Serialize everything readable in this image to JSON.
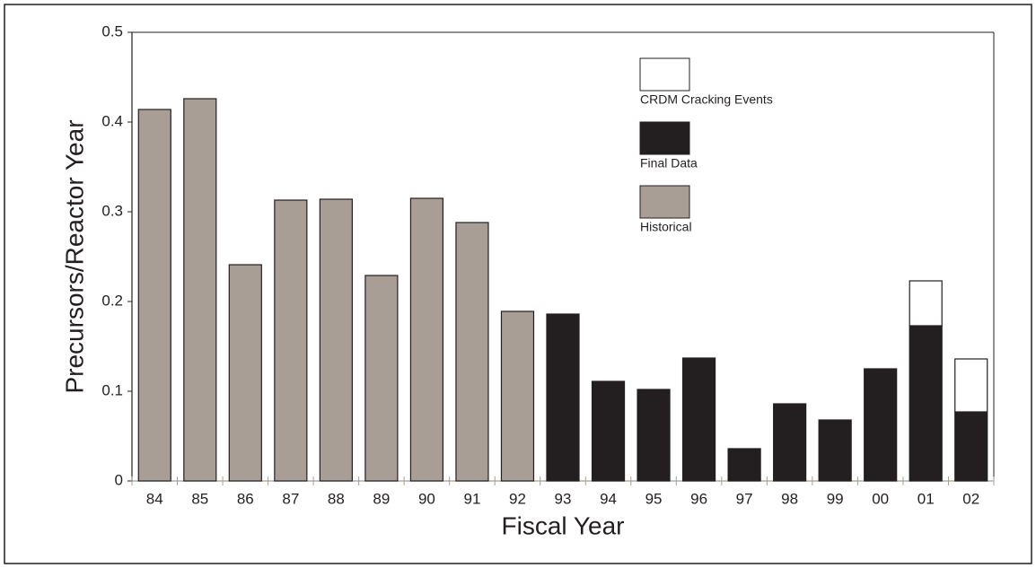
{
  "chart_data": {
    "type": "bar",
    "stacked": true,
    "x_label": "Fiscal Year",
    "y_label": "Precursors/Reactor Year",
    "categories": [
      "84",
      "85",
      "86",
      "87",
      "88",
      "89",
      "90",
      "91",
      "92",
      "93",
      "94",
      "95",
      "96",
      "97",
      "98",
      "99",
      "00",
      "01",
      "02"
    ],
    "series": [
      {
        "name": "Historical",
        "color": "#a89e95",
        "values": [
          0.414,
          0.426,
          0.241,
          0.313,
          0.314,
          0.229,
          0.315,
          0.288,
          0.189,
          null,
          null,
          null,
          null,
          null,
          null,
          null,
          null,
          null,
          null
        ]
      },
      {
        "name": "Final Data",
        "color": "#231f20",
        "values": [
          null,
          null,
          null,
          null,
          null,
          null,
          null,
          null,
          null,
          0.186,
          0.111,
          0.102,
          0.137,
          0.036,
          0.086,
          0.068,
          0.125,
          0.173,
          0.077
        ]
      },
      {
        "name": "CRDM Cracking Events",
        "color": "#ffffff",
        "values": [
          null,
          null,
          null,
          null,
          null,
          null,
          null,
          null,
          null,
          null,
          null,
          null,
          null,
          null,
          null,
          null,
          null,
          0.05,
          0.059
        ]
      }
    ],
    "ylim": [
      0,
      0.5
    ],
    "yticks": [
      0,
      0.1,
      0.2,
      0.3,
      0.4,
      0.5
    ],
    "grid": false
  }
}
